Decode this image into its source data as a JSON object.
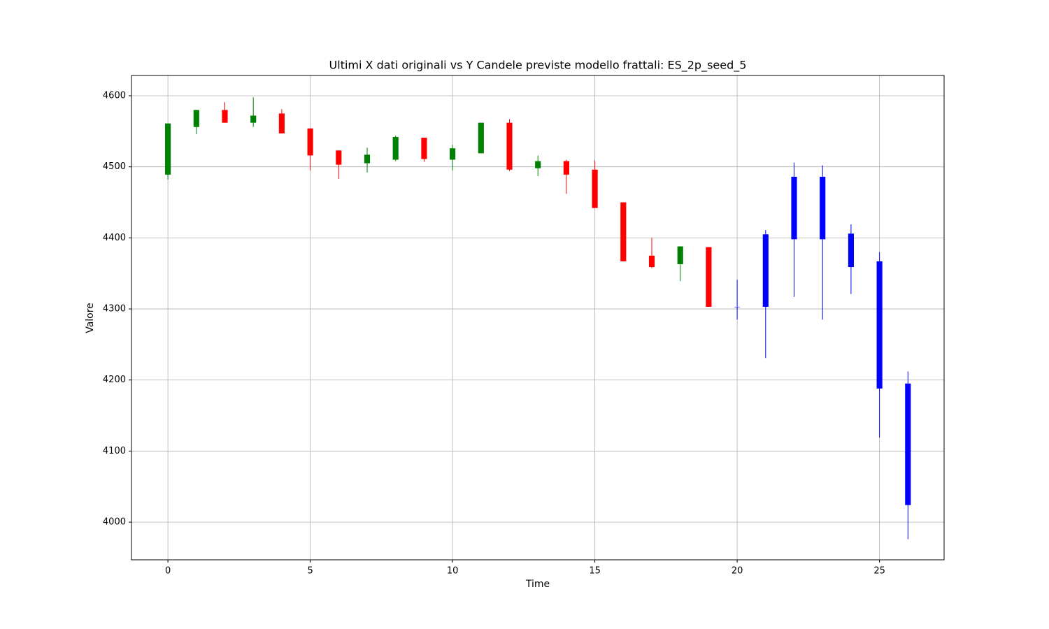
{
  "chart_data": {
    "type": "candlestick",
    "title": "Ultimi X dati originali vs Y Candele previste modello frattali: ES_2p_seed_5",
    "xlabel": "Time",
    "ylabel": "Valore",
    "x": [
      0,
      1,
      2,
      3,
      4,
      5,
      6,
      7,
      8,
      9,
      10,
      11,
      12,
      13,
      14,
      15,
      16,
      17,
      18,
      19,
      20,
      21,
      22,
      23,
      24,
      25,
      26
    ],
    "open": [
      4489,
      4556,
      4580,
      4562,
      4575,
      4554,
      4523,
      4505,
      4510,
      4541,
      4510,
      4519,
      4562,
      4498,
      4508,
      4496,
      4450,
      4375,
      4363,
      4387,
      4303,
      4303,
      4398,
      4486,
      4406,
      4367,
      4195
    ],
    "high": [
      4561,
      4580,
      4591,
      4598,
      4581,
      4554,
      4523,
      4527,
      4544,
      4541,
      4531,
      4562,
      4567,
      4516,
      4510,
      4509,
      4450,
      4400,
      4388,
      4387,
      4341,
      4411,
      4506,
      4502,
      4419,
      4380,
      4212
    ],
    "low": [
      4482,
      4546,
      4562,
      4556,
      4547,
      4495,
      4483,
      4492,
      4508,
      4507,
      4495,
      4519,
      4494,
      4487,
      4462,
      4442,
      4367,
      4357,
      4339,
      4303,
      4285,
      4231,
      4317,
      4285,
      4321,
      4119,
      3976
    ],
    "close": [
      4561,
      4580,
      4562,
      4572,
      4547,
      4516,
      4503,
      4517,
      4542,
      4511,
      4526,
      4562,
      4496,
      4508,
      4489,
      4442,
      4367,
      4359,
      4388,
      4303,
      4303,
      4405,
      4486,
      4398,
      4359,
      4188,
      4024
    ],
    "colors": [
      "green",
      "green",
      "red",
      "green",
      "red",
      "red",
      "red",
      "green",
      "green",
      "red",
      "green",
      "green",
      "red",
      "green",
      "red",
      "red",
      "red",
      "red",
      "green",
      "red",
      "blue",
      "blue",
      "blue",
      "blue",
      "blue",
      "blue",
      "blue"
    ],
    "xlim": [
      -1.28,
      27.27
    ],
    "ylim": [
      3947,
      4628.5
    ],
    "xticks": [
      0,
      5,
      10,
      15,
      20,
      25
    ],
    "yticks": [
      4000,
      4100,
      4200,
      4300,
      4400,
      4500,
      4600
    ],
    "grid": true
  }
}
